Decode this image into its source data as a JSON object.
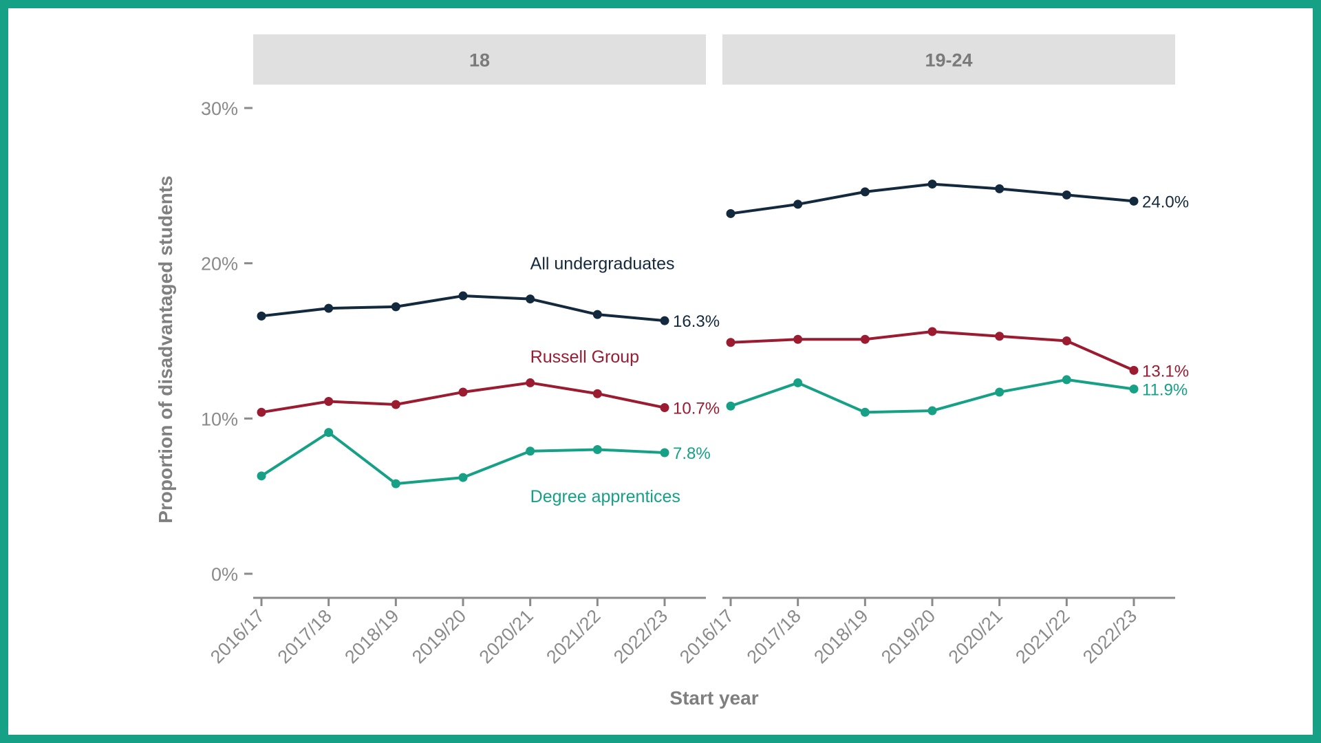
{
  "colors": {
    "frame": "#16a085",
    "strip": "#e0e0e0",
    "axis": "#8a8a8a",
    "text": "#7f7f7f"
  },
  "chart_data": {
    "type": "line",
    "xlabel": "Start year",
    "ylabel": "Proportion of disadvantaged students",
    "ylim": [
      0,
      30
    ],
    "yticks": [
      0,
      10,
      20,
      30
    ],
    "ytick_labels": [
      "0%",
      "10%",
      "20%",
      "30%"
    ],
    "categories": [
      "2016/17",
      "2017/18",
      "2018/19",
      "2019/20",
      "2020/21",
      "2021/22",
      "2022/23"
    ],
    "series_meta": [
      {
        "key": "all",
        "name": "All undergraduates",
        "color": "#13293d"
      },
      {
        "key": "rg",
        "name": "Russell Group",
        "color": "#9b1b30"
      },
      {
        "key": "da",
        "name": "Degree apprentices",
        "color": "#16a085"
      }
    ],
    "panels": [
      {
        "title": "18",
        "series": [
          {
            "key": "all",
            "name": "All undergraduates",
            "values": [
              16.6,
              17.1,
              17.2,
              17.9,
              17.7,
              16.7,
              16.3
            ],
            "end_label": "16.3%"
          },
          {
            "key": "rg",
            "name": "Russell Group",
            "values": [
              10.4,
              11.1,
              10.9,
              11.7,
              12.3,
              11.6,
              10.7
            ],
            "end_label": "10.7%"
          },
          {
            "key": "da",
            "name": "Degree apprentices",
            "values": [
              6.3,
              9.1,
              5.8,
              6.2,
              7.9,
              8.0,
              7.8
            ],
            "end_label": "7.8%"
          }
        ]
      },
      {
        "title": "19-24",
        "series": [
          {
            "key": "all",
            "name": "All undergraduates",
            "values": [
              23.2,
              23.8,
              24.6,
              25.1,
              24.8,
              24.4,
              24.0
            ],
            "end_label": "24.0%"
          },
          {
            "key": "rg",
            "name": "Russell Group",
            "values": [
              14.9,
              15.1,
              15.1,
              15.6,
              15.3,
              15.0,
              13.1
            ],
            "end_label": "13.1%"
          },
          {
            "key": "da",
            "name": "Degree apprentices",
            "values": [
              10.8,
              12.3,
              10.4,
              10.5,
              11.7,
              12.5,
              11.9
            ],
            "end_label": "11.9%"
          }
        ]
      }
    ],
    "series_labels": [
      {
        "key": "all",
        "text": "All undergraduates",
        "panel": 0,
        "near_category": 4,
        "y_value": 20.0
      },
      {
        "key": "rg",
        "text": "Russell Group",
        "panel": 0,
        "near_category": 4,
        "y_value": 14.0
      },
      {
        "key": "da",
        "text": "Degree apprentices",
        "panel": 0,
        "near_category": 4,
        "y_value": 5.0
      }
    ]
  }
}
